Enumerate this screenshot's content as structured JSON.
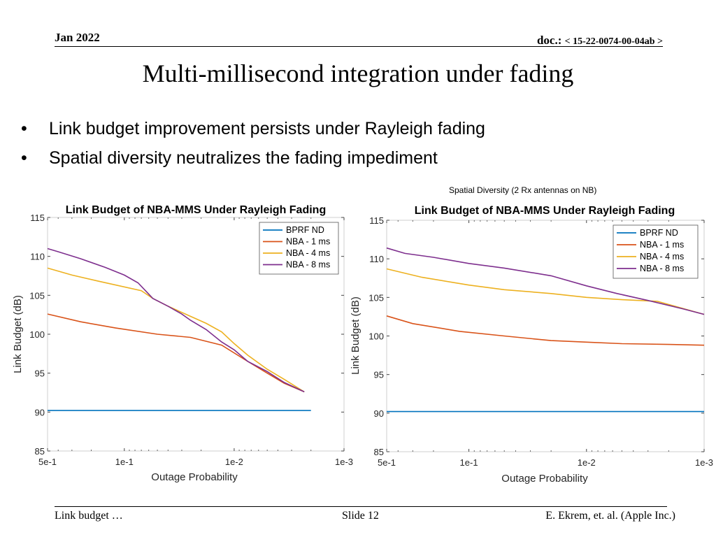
{
  "header": {
    "date": "Jan 2022",
    "doc_prefix": "doc.: ",
    "doc_id": "< 15-22-0074-00-04ab >"
  },
  "slide": {
    "title": "Multi-millisecond integration under fading",
    "bullets": [
      "Link budget improvement persists under Rayleigh fading",
      "Spatial diversity neutralizes the fading impediment"
    ],
    "bullet_glyph": "•",
    "note_right": "Spatial Diversity (2 Rx antennas on NB)"
  },
  "colors": {
    "BPRF ND": "#0072bd",
    "NBA - 1 ms": "#d95319",
    "NBA - 4 ms": "#edb120",
    "NBA - 8 ms": "#7e2f8e"
  },
  "chart_data": [
    {
      "type": "line",
      "title": "Link Budget of NBA-MMS Under Rayleigh Fading",
      "xlabel": "Outage Probability",
      "ylabel": "Link Budget (dB)",
      "xscale": "log",
      "xreversed": true,
      "xlim": [
        0.5,
        0.001
      ],
      "ylim": [
        85,
        115
      ],
      "xticks": [
        0.5,
        0.1,
        0.01,
        0.001
      ],
      "xticklabels": [
        "5e-1",
        "1e-1",
        "1e-2",
        "1e-3"
      ],
      "yticks": [
        85,
        90,
        95,
        100,
        105,
        110,
        115
      ],
      "legend": "top-right",
      "series": [
        {
          "name": "BPRF ND",
          "x": [
            0.5,
            0.002
          ],
          "y": [
            90.2,
            90.2
          ]
        },
        {
          "name": "NBA - 1 ms",
          "x": [
            0.5,
            0.25,
            0.12,
            0.05,
            0.025,
            0.013,
            0.0075,
            0.005,
            0.0035,
            0.0023
          ],
          "y": [
            102.6,
            101.6,
            100.8,
            100.0,
            99.6,
            98.6,
            96.5,
            95.0,
            93.7,
            92.6
          ]
        },
        {
          "name": "NBA - 4 ms",
          "x": [
            0.5,
            0.3,
            0.17,
            0.07,
            0.055,
            0.04,
            0.025,
            0.018,
            0.013,
            0.01,
            0.0075,
            0.005,
            0.0035,
            0.0023
          ],
          "y": [
            108.5,
            107.6,
            106.8,
            105.6,
            104.6,
            103.6,
            102.3,
            101.4,
            100.3,
            98.8,
            97.3,
            95.5,
            94.2,
            92.6
          ]
        },
        {
          "name": "NBA - 8 ms",
          "x": [
            0.5,
            0.4,
            0.25,
            0.15,
            0.1,
            0.075,
            0.055,
            0.04,
            0.03,
            0.025,
            0.018,
            0.013,
            0.01,
            0.0075,
            0.005,
            0.0035,
            0.0023
          ],
          "y": [
            111.0,
            110.6,
            109.7,
            108.6,
            107.6,
            106.6,
            104.6,
            103.6,
            102.6,
            101.8,
            100.6,
            99.0,
            98.0,
            96.5,
            95.2,
            93.8,
            92.6
          ]
        }
      ]
    },
    {
      "type": "line",
      "title": "Link Budget of NBA-MMS Under Rayleigh Fading",
      "xlabel": "Outage Probability",
      "ylabel": "Link Budget (dB)",
      "xscale": "log",
      "xreversed": true,
      "xlim": [
        0.5,
        0.001
      ],
      "ylim": [
        85,
        115
      ],
      "xticks": [
        0.5,
        0.1,
        0.01,
        0.001
      ],
      "xticklabels": [
        "5e-1",
        "1e-1",
        "1e-2",
        "1e-3"
      ],
      "yticks": [
        85,
        90,
        95,
        100,
        105,
        110,
        115
      ],
      "legend": "top-right",
      "series": [
        {
          "name": "BPRF ND",
          "x": [
            0.5,
            0.001
          ],
          "y": [
            90.2,
            90.2
          ]
        },
        {
          "name": "NBA - 1 ms",
          "x": [
            0.5,
            0.3,
            0.12,
            0.05,
            0.02,
            0.01,
            0.005,
            0.002,
            0.001
          ],
          "y": [
            102.6,
            101.6,
            100.6,
            100.0,
            99.4,
            99.2,
            99.0,
            98.9,
            98.8
          ]
        },
        {
          "name": "NBA - 4 ms",
          "x": [
            0.5,
            0.25,
            0.1,
            0.05,
            0.02,
            0.01,
            0.005,
            0.0025,
            0.001
          ],
          "y": [
            108.7,
            107.6,
            106.6,
            106.0,
            105.5,
            105.0,
            104.7,
            104.5,
            102.8
          ]
        },
        {
          "name": "NBA - 8 ms",
          "x": [
            0.5,
            0.35,
            0.2,
            0.1,
            0.05,
            0.02,
            0.01,
            0.0055,
            0.003,
            0.0015,
            0.001
          ],
          "y": [
            111.4,
            110.7,
            110.2,
            109.4,
            108.8,
            107.8,
            106.5,
            105.5,
            104.6,
            103.5,
            102.8
          ]
        }
      ]
    }
  ]
}
